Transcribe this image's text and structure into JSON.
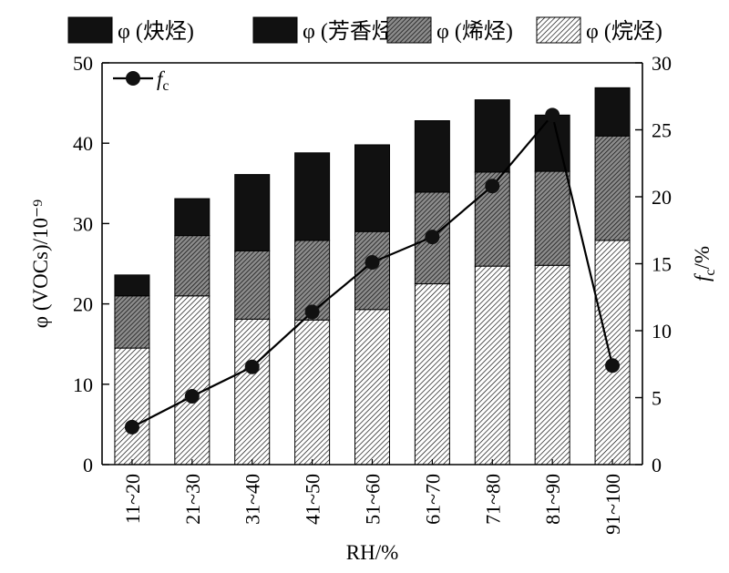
{
  "chart_data": {
    "type": "bar",
    "stacked": true,
    "categories": [
      "11~20",
      "21~30",
      "31~40",
      "41~50",
      "51~60",
      "61~70",
      "71~80",
      "81~90",
      "91~100"
    ],
    "series": [
      {
        "name": "φ (烷烃)",
        "pattern": "light-hatch",
        "values": [
          14.5,
          21.0,
          18.1,
          18.0,
          19.3,
          22.5,
          24.7,
          24.8,
          27.9
        ]
      },
      {
        "name": "φ (烯烃)",
        "pattern": "dark-hatch",
        "values": [
          6.5,
          7.5,
          8.5,
          9.9,
          9.7,
          11.4,
          11.7,
          11.7,
          13.0
        ]
      },
      {
        "name": "φ (芳香烃)",
        "pattern": "solid-black",
        "values": [
          0.0,
          0.0,
          0.0,
          0.0,
          0.0,
          0.0,
          0.0,
          0.0,
          0.0
        ]
      },
      {
        "name": "φ (炔烃)",
        "pattern": "solid-black",
        "values": [
          2.6,
          4.6,
          9.5,
          10.9,
          10.8,
          8.9,
          9.0,
          7.0,
          6.0
        ]
      }
    ],
    "line_series": {
      "name_main": "f",
      "name_sub": "c",
      "axis": "right",
      "values": [
        2.8,
        5.1,
        7.3,
        11.4,
        15.1,
        17.0,
        20.8,
        26.1,
        7.4
      ]
    },
    "legend": [
      {
        "label": "φ (炔烃)",
        "pattern": "solid-black"
      },
      {
        "label": "φ (芳香烃)",
        "pattern": "solid-black"
      },
      {
        "label": "φ (烯烃)",
        "pattern": "dark-hatch"
      },
      {
        "label": "φ (烷烃)",
        "pattern": "light-hatch"
      }
    ],
    "xlabel": "RH/%",
    "ylabel": "φ (VOCs)/10⁻⁹",
    "y2label_main": "f",
    "y2label_sub": "c",
    "y2label_suffix": "/%",
    "ylim": [
      0,
      50
    ],
    "y2lim": [
      0,
      30
    ],
    "yticks": [
      0,
      10,
      20,
      30,
      40,
      50
    ],
    "y2ticks": [
      0,
      5,
      10,
      15,
      20,
      25,
      30
    ],
    "grid": false,
    "legend_placement": "top"
  }
}
